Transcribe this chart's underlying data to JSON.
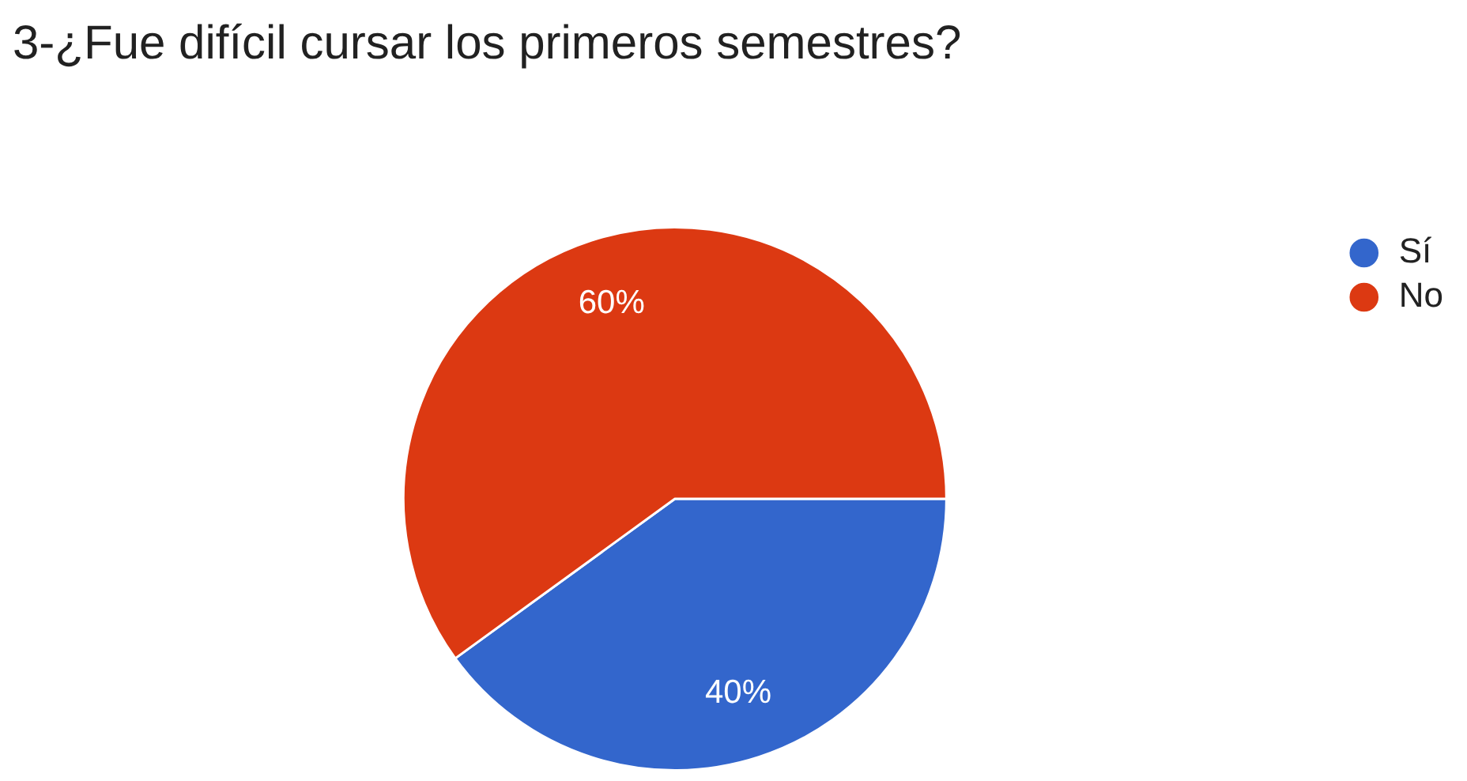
{
  "chart_data": {
    "type": "pie",
    "title": "3-¿Fue difícil cursar los primeros semestres?",
    "categories": [
      "Sí",
      "No"
    ],
    "values": [
      40,
      60
    ],
    "colors": [
      "#3366cc",
      "#dc3912"
    ],
    "value_labels": [
      "40%",
      "60%"
    ],
    "legend": "top right"
  }
}
